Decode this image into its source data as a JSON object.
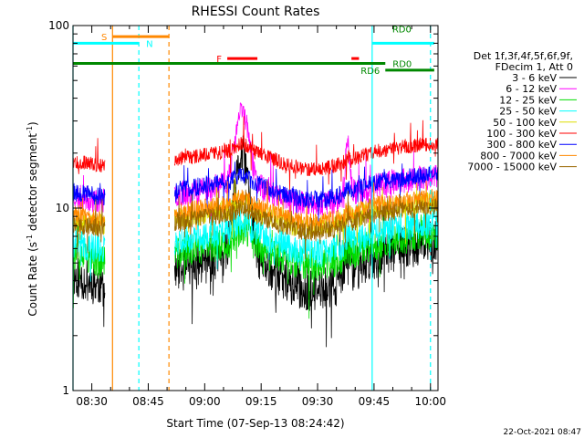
{
  "chart_data": {
    "type": "line",
    "title": "RHESSI Count Rates",
    "xlabel": "Start Time (07-Sep-13 08:24:42)",
    "ylabel": "Count Rate (s",
    "ylabel_sup1": "-1",
    "ylabel_mid": " detector segment",
    "ylabel_sup2": "-1",
    "ylabel_end": ")",
    "y_scale": "log",
    "ylim": [
      1,
      100
    ],
    "xlim_minutes": [
      505,
      602
    ],
    "x_ticks": [
      {
        "label": "08:30",
        "minute": 510
      },
      {
        "label": "08:45",
        "minute": 525
      },
      {
        "label": "09:00",
        "minute": 540
      },
      {
        "label": "09:15",
        "minute": 555
      },
      {
        "label": "09:30",
        "minute": 570
      },
      {
        "label": "09:45",
        "minute": 585
      },
      {
        "label": "10:00",
        "minute": 600
      }
    ],
    "y_ticks": [
      {
        "label": "1",
        "value": 1
      },
      {
        "label": "10",
        "value": 10
      },
      {
        "label": "100",
        "value": 100
      }
    ],
    "legend_header": [
      "Det 1f,3f,4f,5f,6f,9f,",
      "FDecim 1, Att 0"
    ],
    "series": [
      {
        "name": "3 - 6 keV",
        "color": "#000000",
        "level": 5.2,
        "shape": 1.0,
        "noise": 0.12,
        "jitter": 0.6,
        "seed": 11,
        "flare_amp": 2.5,
        "flare2_amp": 0.4
      },
      {
        "name": "6 - 12 keV",
        "color": "#ff00ff",
        "level": 13.0,
        "shape": 0.55,
        "noise": 0.07,
        "jitter": 0.4,
        "seed": 23,
        "flare_amp": 1.55,
        "flare2_amp": 0.9
      },
      {
        "name": "12 - 25 keV",
        "color": "#00dd00",
        "level": 6.2,
        "shape": 0.6,
        "noise": 0.09,
        "jitter": 0.5,
        "seed": 37,
        "flare_amp": 0.2,
        "flare2_amp": 0.1
      },
      {
        "name": "25 - 50 keV",
        "color": "#00ffff",
        "level": 7.2,
        "shape": 0.6,
        "noise": 0.08,
        "jitter": 0.45,
        "seed": 41,
        "flare_amp": 0.15,
        "flare2_amp": 0.08
      },
      {
        "name": "50 - 100 keV",
        "color": "#dddd00",
        "level": 9.5,
        "shape": 0.5,
        "noise": 0.06,
        "jitter": 0.35,
        "seed": 53,
        "flare_amp": 0.12,
        "flare2_amp": 0.06
      },
      {
        "name": "100 - 300 keV",
        "color": "#ff0000",
        "level": 20.0,
        "shape": 0.5,
        "noise": 0.04,
        "jitter": 0.25,
        "seed": 67,
        "flare_amp": 0.1,
        "flare2_amp": 0.05
      },
      {
        "name": "300 - 800 keV",
        "color": "#0000ff",
        "level": 13.5,
        "shape": 0.5,
        "noise": 0.05,
        "jitter": 0.3,
        "seed": 79,
        "flare_amp": 0.1,
        "flare2_amp": 0.05
      },
      {
        "name": "800 - 7000 keV",
        "color": "#ff8800",
        "level": 10.2,
        "shape": 0.5,
        "noise": 0.05,
        "jitter": 0.3,
        "seed": 83,
        "flare_amp": 0.1,
        "flare2_amp": 0.05
      },
      {
        "name": "7000 - 15000 keV",
        "color": "#996600",
        "level": 9.0,
        "shape": 0.5,
        "noise": 0.05,
        "jitter": 0.3,
        "seed": 97,
        "flare_amp": 0.1,
        "flare2_amp": 0.05
      }
    ],
    "data_intervals_minutes": [
      [
        505,
        513.5
      ],
      [
        532,
        602
      ]
    ],
    "vertical_lines": [
      {
        "minute": 505,
        "color": "#00ffff",
        "style": "solid"
      },
      {
        "minute": 515.5,
        "color": "#ff8800",
        "style": "solid"
      },
      {
        "minute": 522.5,
        "color": "#00ffff",
        "style": "dashed"
      },
      {
        "minute": 530.5,
        "color": "#ff8800",
        "style": "dashed"
      },
      {
        "minute": 584.5,
        "color": "#00ffff",
        "style": "solid"
      },
      {
        "minute": 600,
        "color": "#00ffff",
        "style": "dashed"
      }
    ],
    "flag_bars": [
      {
        "label": "S",
        "color": "#ff8800",
        "start": 515.5,
        "end": 530.5,
        "y": 87,
        "label_side": "left"
      },
      {
        "label": "N",
        "color": "#00ffff",
        "start": 505,
        "end": 522.5,
        "y": 80,
        "label_side": "right"
      },
      {
        "label": "F",
        "color": "#ff0000",
        "start": 546,
        "end": 554,
        "y": 66,
        "label_side": "left"
      },
      {
        "label": "",
        "color": "#ff0000",
        "start": 579,
        "end": 581,
        "y": 66,
        "label_side": "none"
      },
      {
        "label": "RD0",
        "color": "#00ffff",
        "start": 584.5,
        "end": 601,
        "y": 80,
        "label_side": "none"
      },
      {
        "label": "RD0",
        "color": "#008800",
        "start": 505,
        "end": 588,
        "y": 62,
        "label_side": "right"
      },
      {
        "label": "RD6",
        "color": "#008800",
        "start": 588,
        "end": 601,
        "y": 57,
        "label_side": "left"
      }
    ]
  },
  "footer_timestamp": "22-Oct-2021 08:47"
}
